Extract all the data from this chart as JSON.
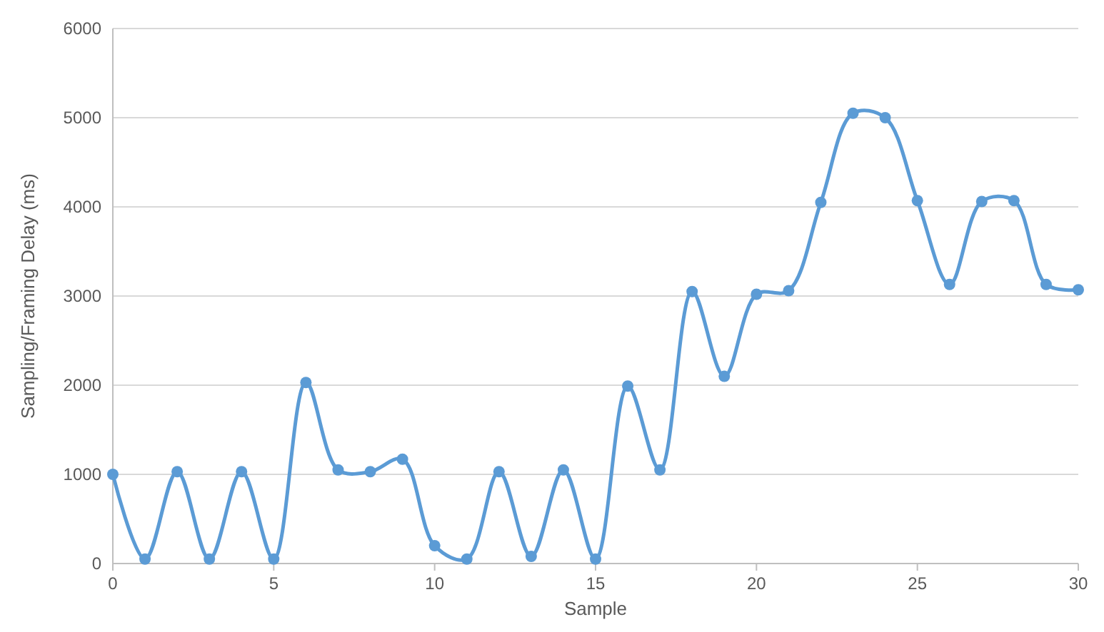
{
  "chart_data": {
    "type": "line",
    "xlabel": "Sample",
    "ylabel": "Sampling/Framing Delay (ms)",
    "x": [
      0,
      1,
      2,
      3,
      4,
      5,
      6,
      7,
      8,
      9,
      10,
      11,
      12,
      13,
      14,
      15,
      16,
      17,
      18,
      19,
      20,
      21,
      22,
      23,
      24,
      25,
      26,
      27,
      28,
      29,
      30
    ],
    "series": [
      {
        "color": "#5b9bd5",
        "values": [
          1000,
          50,
          1030,
          50,
          1030,
          50,
          2030,
          1050,
          1030,
          1170,
          200,
          50,
          1030,
          80,
          1050,
          50,
          1990,
          1050,
          3050,
          2100,
          3020,
          3060,
          4050,
          5050,
          5000,
          4070,
          3130,
          4060,
          4070,
          3130,
          3070
        ]
      }
    ],
    "xlim": [
      0,
      30
    ],
    "xticks": [
      0,
      5,
      10,
      15,
      20,
      25,
      30
    ],
    "ylim": [
      0,
      6000
    ],
    "yticks": [
      0,
      1000,
      2000,
      3000,
      4000,
      5000,
      6000
    ],
    "grid": "y",
    "marker": "circle"
  }
}
